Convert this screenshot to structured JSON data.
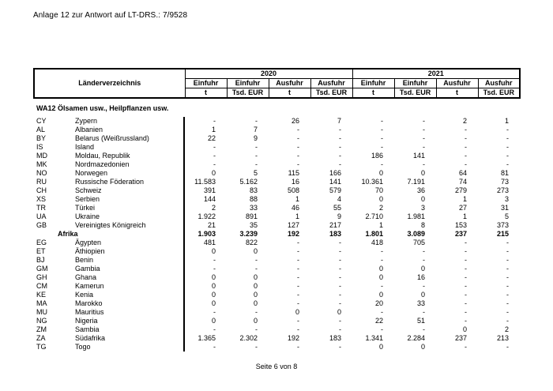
{
  "page_title": "Anlage 12 zur Antwort auf LT-DRS.: 7/9528",
  "footer": {
    "page_label": "Seite 6 von 8"
  },
  "colors": {
    "text": "#000000",
    "background": "#ffffff",
    "border": "#000000"
  },
  "table": {
    "label_header": "Länderverzeichnis",
    "years": [
      {
        "year": "2020"
      },
      {
        "year": "2021"
      }
    ],
    "flow_headers": [
      "Einfuhr",
      "Einfuhr",
      "Ausfuhr",
      "Ausfuhr",
      "Einfuhr",
      "Einfuhr",
      "Ausfuhr",
      "Ausfuhr"
    ],
    "unit_headers": [
      "t",
      "Tsd. EUR",
      "t",
      "Tsd. EUR",
      "t",
      "Tsd. EUR",
      "t",
      "Tsd. EUR"
    ],
    "section_title": "WA12 Ölsamen usw., Heilpflanzen usw.",
    "rows": [
      {
        "code": "CY",
        "name": "Zypern",
        "bold": false,
        "values": [
          "-",
          "-",
          "26",
          "7",
          "-",
          "-",
          "2",
          "1"
        ]
      },
      {
        "code": "AL",
        "name": "Albanien",
        "bold": false,
        "values": [
          "1",
          "7",
          "-",
          "-",
          "-",
          "-",
          "-",
          "-"
        ]
      },
      {
        "code": "BY",
        "name": "Belarus (Weißrussland)",
        "bold": false,
        "values": [
          "22",
          "9",
          "-",
          "-",
          "-",
          "-",
          "-",
          "-"
        ]
      },
      {
        "code": "IS",
        "name": "Island",
        "bold": false,
        "values": [
          "-",
          "-",
          "-",
          "-",
          "-",
          "-",
          "-",
          "-"
        ]
      },
      {
        "code": "MD",
        "name": "Moldau, Republik",
        "bold": false,
        "values": [
          "-",
          "-",
          "-",
          "-",
          "186",
          "141",
          "-",
          "-"
        ]
      },
      {
        "code": "MK",
        "name": "Nordmazedonien",
        "bold": false,
        "values": [
          "-",
          "-",
          "-",
          "-",
          "-",
          "-",
          "-",
          "-"
        ]
      },
      {
        "code": "NO",
        "name": "Norwegen",
        "bold": false,
        "values": [
          "0",
          "5",
          "115",
          "166",
          "0",
          "0",
          "64",
          "81"
        ]
      },
      {
        "code": "RU",
        "name": "Russische Föderation",
        "bold": false,
        "values": [
          "11.583",
          "5.162",
          "16",
          "141",
          "10.361",
          "7.191",
          "74",
          "73"
        ]
      },
      {
        "code": "CH",
        "name": "Schweiz",
        "bold": false,
        "values": [
          "391",
          "83",
          "508",
          "579",
          "70",
          "36",
          "279",
          "273"
        ]
      },
      {
        "code": "XS",
        "name": "Serbien",
        "bold": false,
        "values": [
          "144",
          "88",
          "1",
          "4",
          "0",
          "0",
          "1",
          "3"
        ]
      },
      {
        "code": "TR",
        "name": "Türkei",
        "bold": false,
        "values": [
          "2",
          "33",
          "46",
          "55",
          "2",
          "3",
          "27",
          "31"
        ]
      },
      {
        "code": "UA",
        "name": "Ukraine",
        "bold": false,
        "values": [
          "1.922",
          "891",
          "1",
          "9",
          "2.710",
          "1.981",
          "1",
          "5"
        ]
      },
      {
        "code": "GB",
        "name": "Vereinigtes Königreich",
        "bold": false,
        "values": [
          "21",
          "35",
          "127",
          "217",
          "1",
          "8",
          "153",
          "373"
        ]
      },
      {
        "code": "",
        "name": "Afrika",
        "bold": true,
        "values": [
          "1.903",
          "3.239",
          "192",
          "183",
          "1.801",
          "3.089",
          "237",
          "215"
        ]
      },
      {
        "code": "EG",
        "name": "Ägypten",
        "bold": false,
        "values": [
          "481",
          "822",
          "-",
          "-",
          "418",
          "705",
          "-",
          "-"
        ]
      },
      {
        "code": "ET",
        "name": "Äthiopien",
        "bold": false,
        "values": [
          "0",
          "0",
          "-",
          "-",
          "-",
          "-",
          "-",
          "-"
        ]
      },
      {
        "code": "BJ",
        "name": "Benin",
        "bold": false,
        "values": [
          "-",
          "-",
          "-",
          "-",
          "-",
          "-",
          "-",
          "-"
        ]
      },
      {
        "code": "GM",
        "name": "Gambia",
        "bold": false,
        "values": [
          "-",
          "-",
          "-",
          "-",
          "0",
          "0",
          "-",
          "-"
        ]
      },
      {
        "code": "GH",
        "name": "Ghana",
        "bold": false,
        "values": [
          "0",
          "0",
          "-",
          "-",
          "0",
          "16",
          "-",
          "-"
        ]
      },
      {
        "code": "CM",
        "name": "Kamerun",
        "bold": false,
        "values": [
          "0",
          "0",
          "-",
          "-",
          "-",
          "-",
          "-",
          "-"
        ]
      },
      {
        "code": "KE",
        "name": "Kenia",
        "bold": false,
        "values": [
          "0",
          "0",
          "-",
          "-",
          "0",
          "0",
          "-",
          "-"
        ]
      },
      {
        "code": "MA",
        "name": "Marokko",
        "bold": false,
        "values": [
          "0",
          "0",
          "-",
          "-",
          "20",
          "33",
          "-",
          "-"
        ]
      },
      {
        "code": "MU",
        "name": "Mauritius",
        "bold": false,
        "values": [
          "-",
          "-",
          "0",
          "0",
          "-",
          "-",
          "-",
          "-"
        ]
      },
      {
        "code": "NG",
        "name": "Nigeria",
        "bold": false,
        "values": [
          "0",
          "0",
          "-",
          "-",
          "22",
          "51",
          "-",
          "-"
        ]
      },
      {
        "code": "ZM",
        "name": "Sambia",
        "bold": false,
        "values": [
          "-",
          "-",
          "-",
          "-",
          "-",
          "-",
          "0",
          "2"
        ]
      },
      {
        "code": "ZA",
        "name": "Südafrika",
        "bold": false,
        "values": [
          "1.365",
          "2.302",
          "192",
          "183",
          "1.341",
          "2.284",
          "237",
          "213"
        ]
      },
      {
        "code": "TG",
        "name": "Togo",
        "bold": false,
        "values": [
          "-",
          "-",
          "-",
          "-",
          "0",
          "0",
          "-",
          "-"
        ]
      }
    ]
  }
}
